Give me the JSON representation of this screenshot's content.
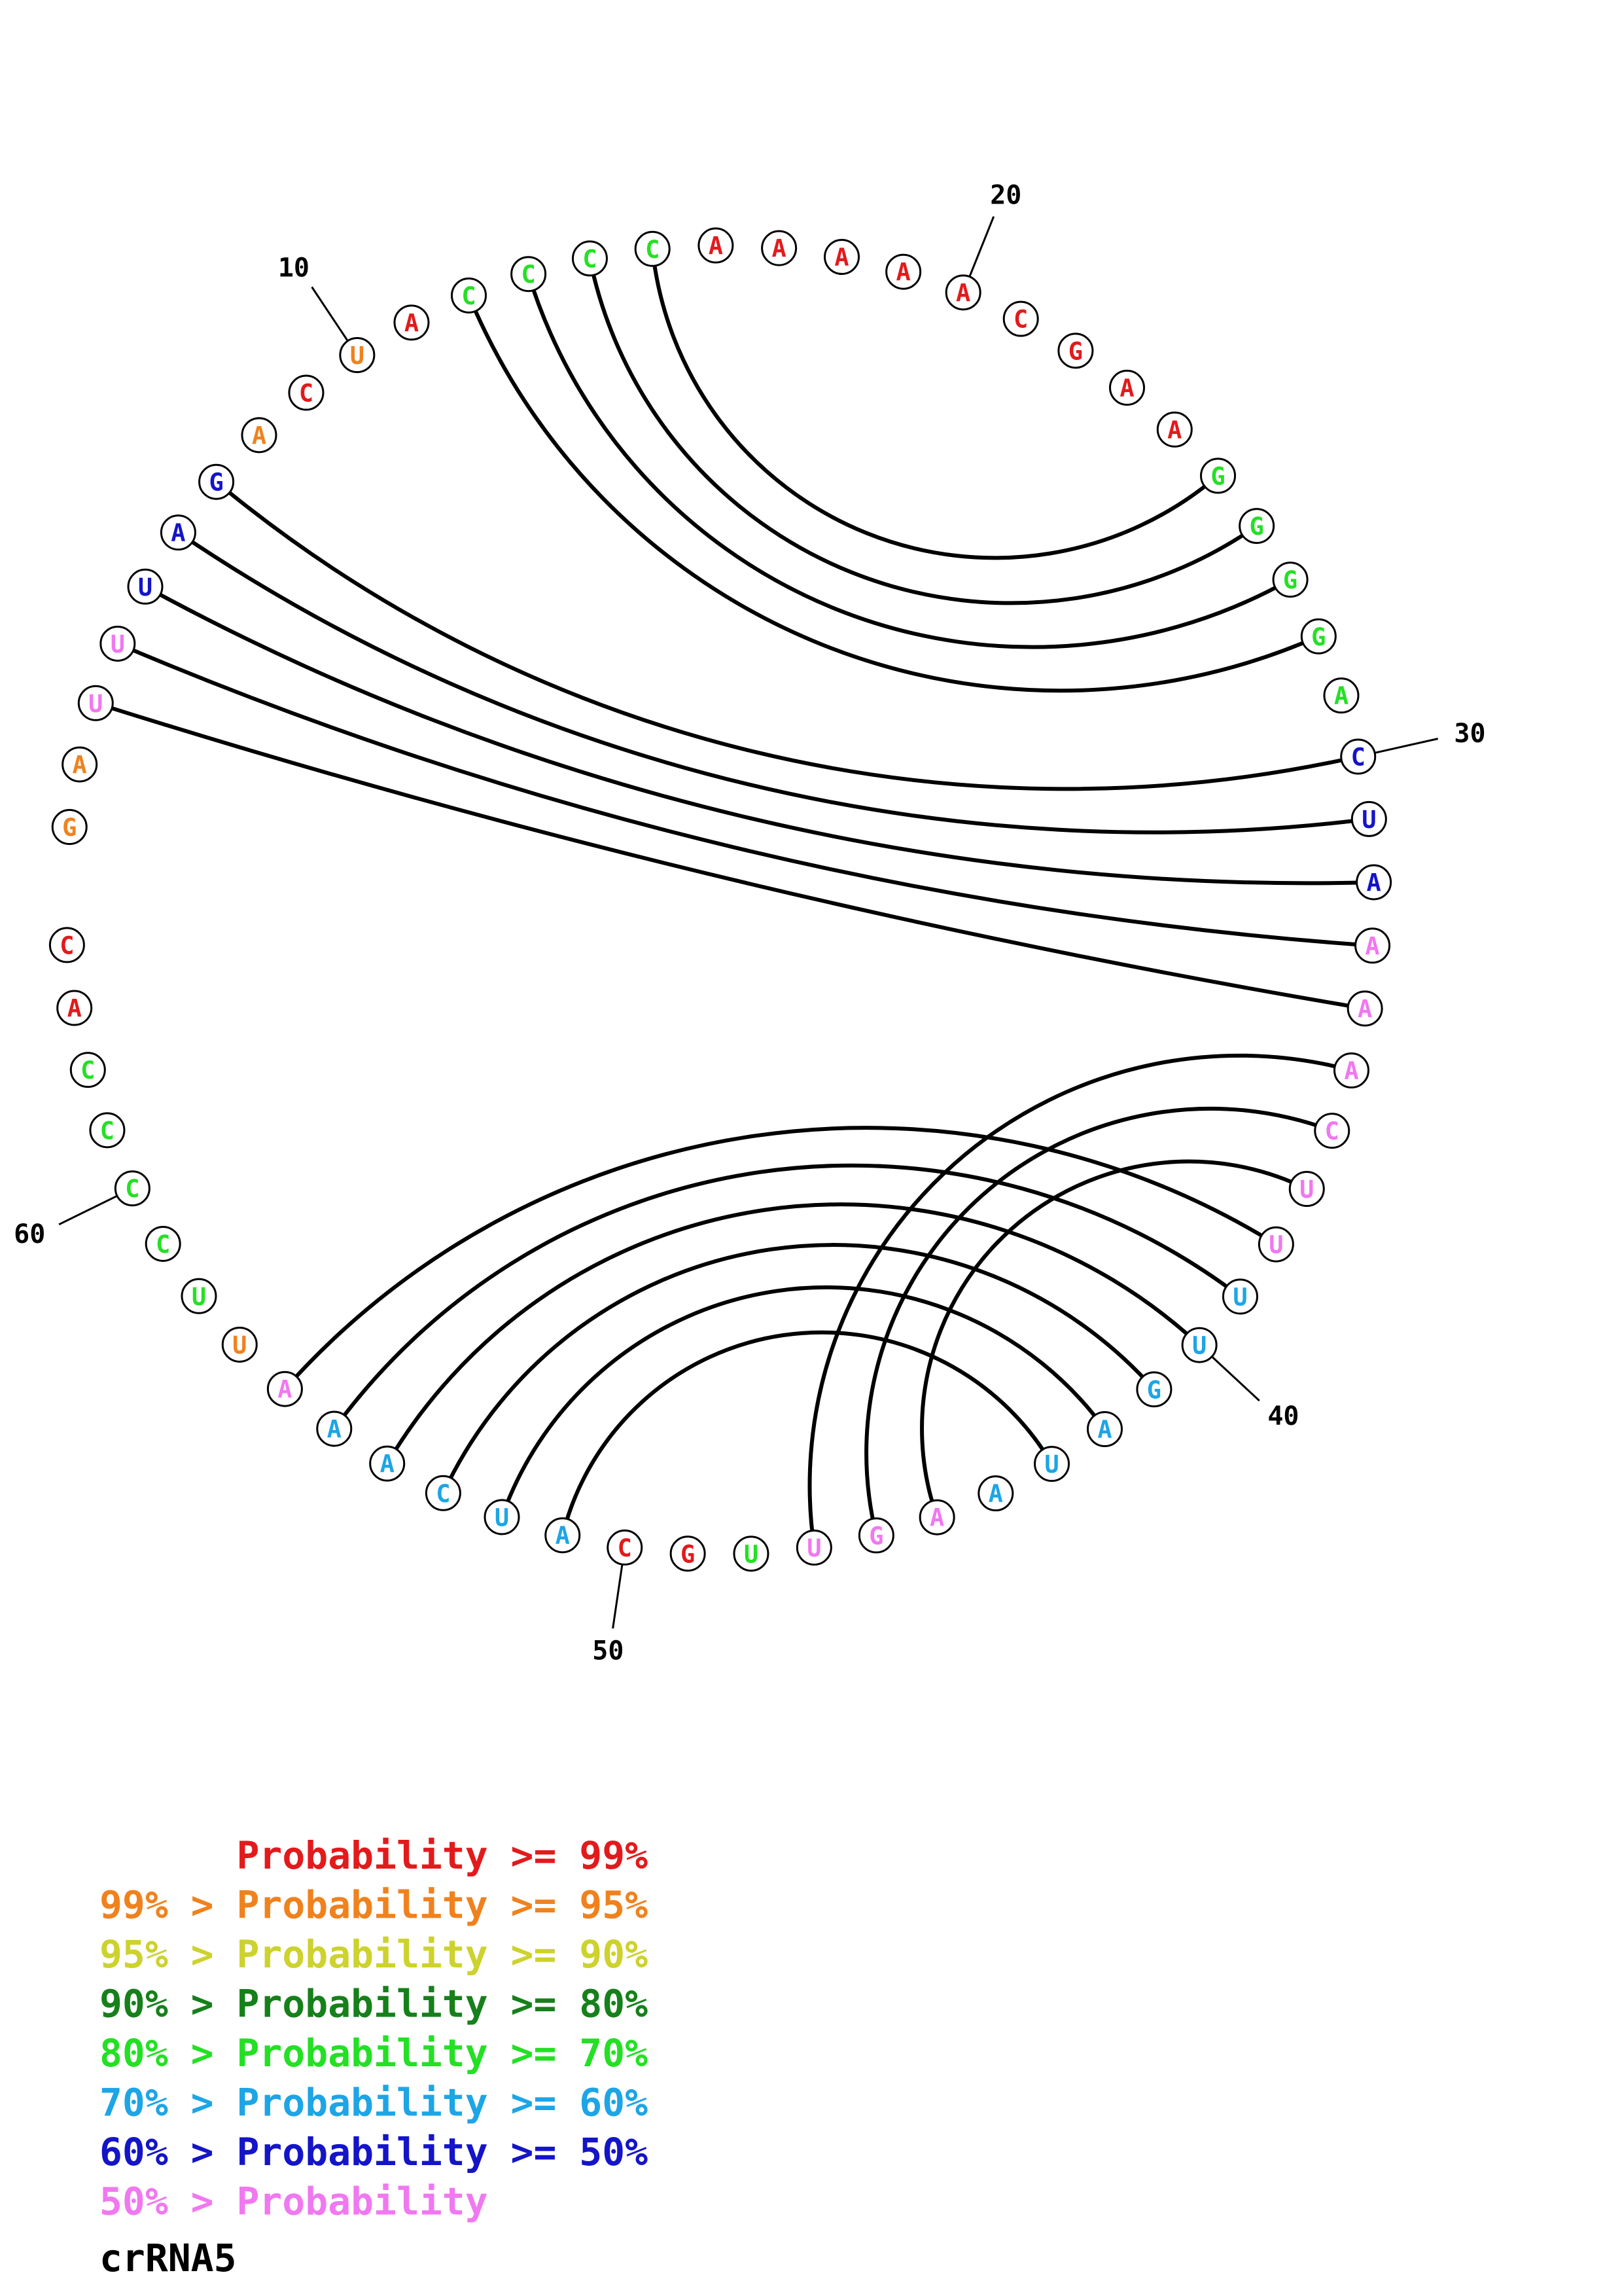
{
  "colors": {
    "p99": "#e31a1c",
    "p95": "#f0821e",
    "p90": "#cdd22d",
    "p80": "#16801a",
    "p70": "#24e024",
    "p60": "#1da5e6",
    "p50": "#1414c8",
    "plow": "#f078f0"
  },
  "diagram": {
    "title": "crRNA5",
    "nucleotides": [
      {
        "n": 1,
        "b": "G",
        "c": "p95"
      },
      {
        "n": 2,
        "b": "A",
        "c": "p95"
      },
      {
        "n": 3,
        "b": "U",
        "c": "plow"
      },
      {
        "n": 4,
        "b": "U",
        "c": "plow"
      },
      {
        "n": 5,
        "b": "U",
        "c": "p50"
      },
      {
        "n": 6,
        "b": "A",
        "c": "p50"
      },
      {
        "n": 7,
        "b": "G",
        "c": "p50"
      },
      {
        "n": 8,
        "b": "A",
        "c": "p95"
      },
      {
        "n": 9,
        "b": "C",
        "c": "p99"
      },
      {
        "n": 10,
        "b": "U",
        "c": "p95"
      },
      {
        "n": 11,
        "b": "A",
        "c": "p99"
      },
      {
        "n": 12,
        "b": "C",
        "c": "p70"
      },
      {
        "n": 13,
        "b": "C",
        "c": "p70"
      },
      {
        "n": 14,
        "b": "C",
        "c": "p70"
      },
      {
        "n": 15,
        "b": "C",
        "c": "p70"
      },
      {
        "n": 16,
        "b": "A",
        "c": "p99"
      },
      {
        "n": 17,
        "b": "A",
        "c": "p99"
      },
      {
        "n": 18,
        "b": "A",
        "c": "p99"
      },
      {
        "n": 19,
        "b": "A",
        "c": "p99"
      },
      {
        "n": 20,
        "b": "A",
        "c": "p99"
      },
      {
        "n": 21,
        "b": "C",
        "c": "p99"
      },
      {
        "n": 22,
        "b": "G",
        "c": "p99"
      },
      {
        "n": 23,
        "b": "A",
        "c": "p99"
      },
      {
        "n": 24,
        "b": "A",
        "c": "p99"
      },
      {
        "n": 25,
        "b": "G",
        "c": "p70"
      },
      {
        "n": 26,
        "b": "G",
        "c": "p70"
      },
      {
        "n": 27,
        "b": "G",
        "c": "p70"
      },
      {
        "n": 28,
        "b": "G",
        "c": "p70"
      },
      {
        "n": 29,
        "b": "A",
        "c": "p70"
      },
      {
        "n": 30,
        "b": "C",
        "c": "p50"
      },
      {
        "n": 31,
        "b": "U",
        "c": "p50"
      },
      {
        "n": 32,
        "b": "A",
        "c": "p50"
      },
      {
        "n": 33,
        "b": "A",
        "c": "plow"
      },
      {
        "n": 34,
        "b": "A",
        "c": "plow"
      },
      {
        "n": 35,
        "b": "A",
        "c": "plow"
      },
      {
        "n": 36,
        "b": "C",
        "c": "plow"
      },
      {
        "n": 37,
        "b": "U",
        "c": "plow"
      },
      {
        "n": 38,
        "b": "U",
        "c": "plow"
      },
      {
        "n": 39,
        "b": "U",
        "c": "p60"
      },
      {
        "n": 40,
        "b": "U",
        "c": "p60"
      },
      {
        "n": 41,
        "b": "G",
        "c": "p60"
      },
      {
        "n": 42,
        "b": "A",
        "c": "p60"
      },
      {
        "n": 43,
        "b": "U",
        "c": "p60"
      },
      {
        "n": 44,
        "b": "A",
        "c": "p60"
      },
      {
        "n": 45,
        "b": "A",
        "c": "plow"
      },
      {
        "n": 46,
        "b": "G",
        "c": "plow"
      },
      {
        "n": 47,
        "b": "U",
        "c": "plow"
      },
      {
        "n": 48,
        "b": "U",
        "c": "p70"
      },
      {
        "n": 49,
        "b": "G",
        "c": "p99"
      },
      {
        "n": 50,
        "b": "C",
        "c": "p99"
      },
      {
        "n": 51,
        "b": "A",
        "c": "p60"
      },
      {
        "n": 52,
        "b": "U",
        "c": "p60"
      },
      {
        "n": 53,
        "b": "C",
        "c": "p60"
      },
      {
        "n": 54,
        "b": "A",
        "c": "p60"
      },
      {
        "n": 55,
        "b": "A",
        "c": "p60"
      },
      {
        "n": 56,
        "b": "A",
        "c": "plow"
      },
      {
        "n": 57,
        "b": "U",
        "c": "p95"
      },
      {
        "n": 58,
        "b": "U",
        "c": "p70"
      },
      {
        "n": 59,
        "b": "C",
        "c": "p70"
      },
      {
        "n": 60,
        "b": "C",
        "c": "p70"
      },
      {
        "n": 61,
        "b": "C",
        "c": "p70"
      },
      {
        "n": 62,
        "b": "C",
        "c": "p70"
      },
      {
        "n": 63,
        "b": "A",
        "c": "p99"
      },
      {
        "n": 64,
        "b": "C",
        "c": "p99"
      }
    ],
    "pairs": [
      [
        3,
        34
      ],
      [
        4,
        33
      ],
      [
        5,
        32
      ],
      [
        6,
        31
      ],
      [
        7,
        30
      ],
      [
        12,
        28
      ],
      [
        13,
        27
      ],
      [
        14,
        26
      ],
      [
        15,
        25
      ],
      [
        35,
        47
      ],
      [
        36,
        46
      ],
      [
        37,
        45
      ],
      [
        38,
        56
      ],
      [
        39,
        55
      ],
      [
        40,
        54
      ],
      [
        41,
        53
      ],
      [
        42,
        52
      ],
      [
        43,
        51
      ]
    ],
    "ticks": [
      {
        "n": 10,
        "label": "10"
      },
      {
        "n": 20,
        "label": "20"
      },
      {
        "n": 30,
        "label": "30"
      },
      {
        "n": 40,
        "label": "40"
      },
      {
        "n": 50,
        "label": "50"
      },
      {
        "n": 60,
        "label": "60"
      }
    ]
  },
  "legend": [
    {
      "text": "      Probability >= 99%",
      "color": "p99"
    },
    {
      "text": "99% > Probability >= 95%",
      "color": "p95"
    },
    {
      "text": "95% > Probability >= 90%",
      "color": "p90"
    },
    {
      "text": "90% > Probability >= 80%",
      "color": "p80"
    },
    {
      "text": "80% > Probability >= 70%",
      "color": "p70"
    },
    {
      "text": "70% > Probability >= 60%",
      "color": "p60"
    },
    {
      "text": "60% > Probability >= 50%",
      "color": "p50"
    },
    {
      "text": "50% > Probability",
      "color": "plow"
    }
  ]
}
